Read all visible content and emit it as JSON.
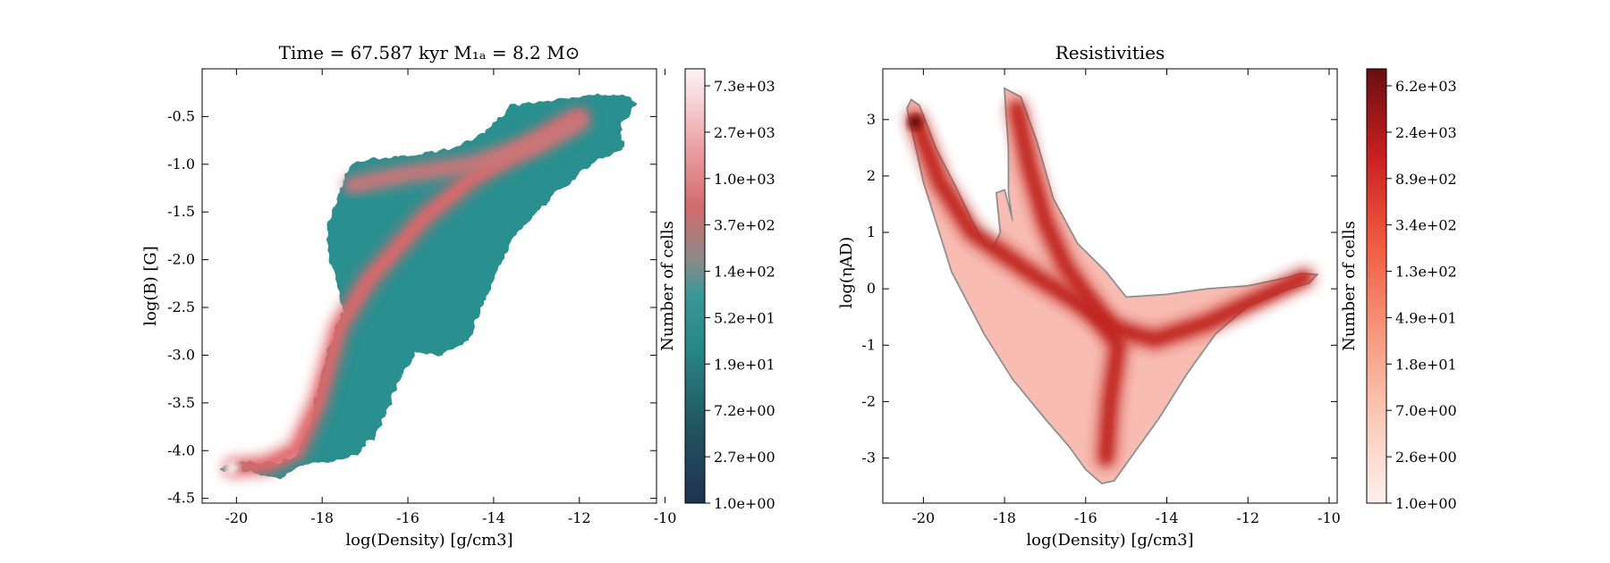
{
  "figure": {
    "panels": [
      {
        "title": "Time = 67.587 kyr    M₁ₐ = 8.2 M⊙",
        "xlabel": "log(Density) [g/cm3]",
        "ylabel": "log(B) [G]",
        "colorbar_label": "Number of cells",
        "colormap": "teal-to-salmon",
        "colors": {
          "low": "#1f3350",
          "mid": "#2a8f8f",
          "high": "#e0666a",
          "top": "#fbeff1"
        }
      },
      {
        "title": "Resistivities",
        "xlabel": "log(Density) [g/cm3]",
        "ylabel": "log(ηAD)",
        "colorbar_label": "Number of cells",
        "colormap": "Reds",
        "colors": {
          "low": "#fdecea",
          "mid": "#ef5a40",
          "high": "#c0231d",
          "top": "#6a0d10",
          "outline": "#808080"
        }
      }
    ]
  },
  "chart_data": [
    {
      "type": "heatmap",
      "title": "Time = 67.587 kyr    M₁ₐ = 8.2 M⊙",
      "xlabel": "log(Density) [g/cm3]",
      "ylabel": "log(B) [G]",
      "xlim": [
        -20.8,
        -10.2
      ],
      "ylim": [
        -4.55,
        0.0
      ],
      "xticks": [
        -20,
        -18,
        -16,
        -14,
        -12,
        -10
      ],
      "yticks": [
        -4.5,
        -4.0,
        -3.5,
        -3.0,
        -2.5,
        -2.0,
        -1.5,
        -1.0,
        -0.5
      ],
      "xtick_labels": [
        "-20",
        "-18",
        "-16",
        "-14",
        "-12",
        "-10"
      ],
      "ytick_labels": [
        "-4.5",
        "-4.0",
        "-3.5",
        "-3.0",
        "-2.5",
        "-2.0",
        "-1.5",
        "-1.0",
        "-0.5"
      ],
      "colorbar": {
        "label": "Number of cells",
        "scale": "log",
        "range": [
          1.0,
          10000
        ],
        "ticks": [
          "1.0e+00",
          "2.7e+00",
          "7.2e+00",
          "1.9e+01",
          "5.2e+01",
          "1.4e+02",
          "3.7e+02",
          "1.0e+03",
          "2.7e+03",
          "7.3e+03"
        ]
      },
      "region_outline": [
        [
          -20.4,
          -4.19
        ],
        [
          -20.1,
          -4.13
        ],
        [
          -19.6,
          -4.13
        ],
        [
          -19.0,
          -4.13
        ],
        [
          -18.6,
          -4.05
        ],
        [
          -18.3,
          -3.75
        ],
        [
          -18.1,
          -3.4
        ],
        [
          -17.9,
          -3.0
        ],
        [
          -17.7,
          -2.7
        ],
        [
          -17.5,
          -2.55
        ],
        [
          -17.6,
          -2.35
        ],
        [
          -17.8,
          -2.0
        ],
        [
          -17.9,
          -1.7
        ],
        [
          -17.6,
          -1.3
        ],
        [
          -17.3,
          -1.0
        ],
        [
          -16.8,
          -0.95
        ],
        [
          -16.0,
          -0.92
        ],
        [
          -15.0,
          -0.85
        ],
        [
          -14.3,
          -0.7
        ],
        [
          -13.6,
          -0.4
        ],
        [
          -13.0,
          -0.35
        ],
        [
          -12.2,
          -0.31
        ],
        [
          -11.6,
          -0.27
        ],
        [
          -11.0,
          -0.28
        ],
        [
          -10.7,
          -0.35
        ],
        [
          -11.0,
          -0.6
        ],
        [
          -11.0,
          -0.85
        ],
        [
          -11.6,
          -0.95
        ],
        [
          -12.1,
          -1.15
        ],
        [
          -12.6,
          -1.3
        ],
        [
          -13.0,
          -1.5
        ],
        [
          -13.6,
          -1.8
        ],
        [
          -14.1,
          -2.3
        ],
        [
          -14.6,
          -2.85
        ],
        [
          -15.3,
          -3.0
        ],
        [
          -15.8,
          -2.95
        ],
        [
          -16.2,
          -3.25
        ],
        [
          -16.7,
          -3.8
        ],
        [
          -17.2,
          -4.05
        ],
        [
          -17.8,
          -4.1
        ],
        [
          -18.5,
          -4.15
        ],
        [
          -19.0,
          -4.3
        ],
        [
          -19.4,
          -4.25
        ],
        [
          -19.8,
          -4.2
        ],
        [
          -20.3,
          -4.23
        ]
      ],
      "ridges": [
        {
          "points": [
            [
              -20.1,
              -4.18
            ],
            [
              -19.3,
              -4.15
            ],
            [
              -18.6,
              -4.0
            ],
            [
              -18.1,
              -3.5
            ],
            [
              -17.6,
              -2.7
            ],
            [
              -16.9,
              -2.2
            ],
            [
              -16.3,
              -1.9
            ],
            [
              -15.6,
              -1.55
            ],
            [
              -14.5,
              -1.15
            ],
            [
              -13.0,
              -0.75
            ],
            [
              -12.0,
              -0.5
            ]
          ],
          "intensity": "high"
        },
        {
          "points": [
            [
              -17.3,
              -1.22
            ],
            [
              -16.0,
              -1.1
            ],
            [
              -14.5,
              -1.0
            ],
            [
              -13.0,
              -0.8
            ],
            [
              -12.0,
              -0.55
            ]
          ],
          "intensity": "mid"
        }
      ],
      "peak": {
        "x": -20.1,
        "y": -4.18,
        "level": "7.3e+03"
      }
    },
    {
      "type": "heatmap",
      "title": "Resistivities",
      "xlabel": "log(Density) [g/cm3]",
      "ylabel": "log(ηAD)",
      "xlim": [
        -21.0,
        -9.8
      ],
      "ylim": [
        -3.8,
        3.9
      ],
      "xticks": [
        -20,
        -18,
        -16,
        -14,
        -12,
        -10
      ],
      "yticks": [
        -3,
        -2,
        -1,
        0,
        1,
        2,
        3
      ],
      "xtick_labels": [
        "-20",
        "-18",
        "-16",
        "-14",
        "-12",
        "-10"
      ],
      "ytick_labels": [
        "-3",
        "-2",
        "-1",
        "0",
        "1",
        "2",
        "3"
      ],
      "colorbar": {
        "label": "Number of cells",
        "scale": "log",
        "range": [
          1.0,
          10000
        ],
        "ticks": [
          "1.0e+00",
          "2.6e+00",
          "7.0e+00",
          "1.8e+01",
          "4.9e+01",
          "1.3e+02",
          "3.4e+02",
          "8.9e+02",
          "2.4e+03",
          "6.2e+03"
        ]
      },
      "region_outline": [
        [
          -20.3,
          3.35
        ],
        [
          -20.1,
          3.25
        ],
        [
          -19.7,
          2.5
        ],
        [
          -19.2,
          1.8
        ],
        [
          -18.8,
          1.2
        ],
        [
          -18.5,
          0.8
        ],
        [
          -18.3,
          0.7
        ],
        [
          -18.1,
          1.0
        ],
        [
          -18.2,
          1.7
        ],
        [
          -18.0,
          1.75
        ],
        [
          -17.8,
          1.2
        ],
        [
          -17.9,
          1.7
        ],
        [
          -17.9,
          2.5
        ],
        [
          -18.0,
          3.55
        ],
        [
          -17.6,
          3.4
        ],
        [
          -17.2,
          2.6
        ],
        [
          -16.8,
          1.6
        ],
        [
          -16.2,
          0.8
        ],
        [
          -15.5,
          0.3
        ],
        [
          -15.0,
          -0.15
        ],
        [
          -14.0,
          -0.1
        ],
        [
          -13.0,
          0.0
        ],
        [
          -12.0,
          0.05
        ],
        [
          -11.0,
          0.2
        ],
        [
          -10.7,
          0.27
        ],
        [
          -10.3,
          0.25
        ],
        [
          -10.5,
          0.1
        ],
        [
          -11.0,
          0.0
        ],
        [
          -12.0,
          -0.3
        ],
        [
          -12.8,
          -0.8
        ],
        [
          -13.5,
          -1.5
        ],
        [
          -14.2,
          -2.3
        ],
        [
          -14.8,
          -2.9
        ],
        [
          -15.3,
          -3.4
        ],
        [
          -15.6,
          -3.45
        ],
        [
          -16.0,
          -3.2
        ],
        [
          -16.4,
          -2.8
        ],
        [
          -17.0,
          -2.3
        ],
        [
          -17.8,
          -1.6
        ],
        [
          -18.5,
          -0.8
        ],
        [
          -19.3,
          0.3
        ],
        [
          -20.0,
          1.9
        ],
        [
          -20.4,
          3.2
        ]
      ],
      "ridges": [
        {
          "points": [
            [
              -20.2,
              3.0
            ],
            [
              -19.6,
              1.9
            ],
            [
              -18.8,
              1.0
            ],
            [
              -18.0,
              0.6
            ],
            [
              -17.2,
              0.2
            ],
            [
              -16.3,
              -0.2
            ],
            [
              -15.3,
              -0.7
            ],
            [
              -14.3,
              -0.9
            ],
            [
              -13.0,
              -0.6
            ],
            [
              -11.5,
              -0.1
            ],
            [
              -10.6,
              0.2
            ]
          ],
          "intensity": "high"
        },
        {
          "points": [
            [
              -17.7,
              3.2
            ],
            [
              -17.4,
              2.2
            ],
            [
              -17.0,
              1.2
            ],
            [
              -16.5,
              0.4
            ],
            [
              -15.8,
              -0.3
            ],
            [
              -15.2,
              -1.0
            ],
            [
              -15.4,
              -2.0
            ],
            [
              -15.5,
              -3.0
            ]
          ],
          "intensity": "mid"
        }
      ],
      "peak": {
        "x": -20.2,
        "y": 2.95,
        "level": "6.2e+03"
      }
    }
  ]
}
